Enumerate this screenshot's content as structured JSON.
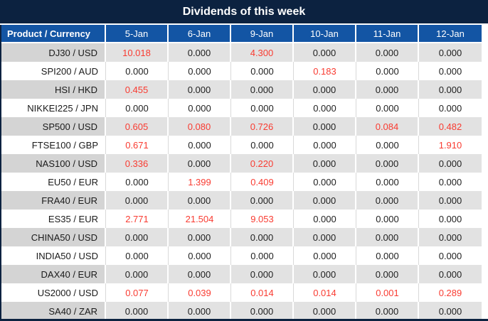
{
  "colors": {
    "title_bg": "#0c2240",
    "header_bg": "#1355a4",
    "header_text": "#ffffff",
    "row_gray_label": "#d4d4d4",
    "row_gray_value": "#e2e2e2",
    "row_white": "#ffffff",
    "value_black": "#212121",
    "value_red": "#f93b31",
    "white_row_separator": "#d9d9d9"
  },
  "chart_data": {
    "type": "table",
    "title": "Dividends of this week",
    "columns": [
      "Product / Currency",
      "5-Jan",
      "6-Jan",
      "9-Jan",
      "10-Jan",
      "11-Jan",
      "12-Jan"
    ],
    "rows": [
      {
        "product": "DJ30 / USD",
        "values": [
          "10.018",
          "0.000",
          "4.300",
          "0.000",
          "0.000",
          "0.000"
        ]
      },
      {
        "product": "SPI200 / AUD",
        "values": [
          "0.000",
          "0.000",
          "0.000",
          "0.183",
          "0.000",
          "0.000"
        ]
      },
      {
        "product": "HSI / HKD",
        "values": [
          "0.455",
          "0.000",
          "0.000",
          "0.000",
          "0.000",
          "0.000"
        ]
      },
      {
        "product": "NIKKEI225 / JPN",
        "values": [
          "0.000",
          "0.000",
          "0.000",
          "0.000",
          "0.000",
          "0.000"
        ]
      },
      {
        "product": "SP500 / USD",
        "values": [
          "0.605",
          "0.080",
          "0.726",
          "0.000",
          "0.084",
          "0.482"
        ]
      },
      {
        "product": "FTSE100 / GBP",
        "values": [
          "0.671",
          "0.000",
          "0.000",
          "0.000",
          "0.000",
          "1.910"
        ]
      },
      {
        "product": "NAS100 / USD",
        "values": [
          "0.336",
          "0.000",
          "0.220",
          "0.000",
          "0.000",
          "0.000"
        ]
      },
      {
        "product": "EU50 / EUR",
        "values": [
          "0.000",
          "1.399",
          "0.409",
          "0.000",
          "0.000",
          "0.000"
        ]
      },
      {
        "product": "FRA40 / EUR",
        "values": [
          "0.000",
          "0.000",
          "0.000",
          "0.000",
          "0.000",
          "0.000"
        ]
      },
      {
        "product": "ES35 / EUR",
        "values": [
          "2.771",
          "21.504",
          "9.053",
          "0.000",
          "0.000",
          "0.000"
        ]
      },
      {
        "product": "CHINA50 / USD",
        "values": [
          "0.000",
          "0.000",
          "0.000",
          "0.000",
          "0.000",
          "0.000"
        ]
      },
      {
        "product": "INDIA50 / USD",
        "values": [
          "0.000",
          "0.000",
          "0.000",
          "0.000",
          "0.000",
          "0.000"
        ]
      },
      {
        "product": "DAX40 / EUR",
        "values": [
          "0.000",
          "0.000",
          "0.000",
          "0.000",
          "0.000",
          "0.000"
        ]
      },
      {
        "product": "US2000 / USD",
        "values": [
          "0.077",
          "0.039",
          "0.014",
          "0.014",
          "0.001",
          "0.289"
        ]
      },
      {
        "product": "SA40 / ZAR",
        "values": [
          "0.000",
          "0.000",
          "0.000",
          "0.000",
          "0.000",
          "0.000"
        ]
      }
    ],
    "value_color_rule": "non-zero dividend values rendered in red, zero values in near-black",
    "row_striping": "alternating gray/white starting gray on first data row",
    "legend_position": "none",
    "grid": true
  }
}
